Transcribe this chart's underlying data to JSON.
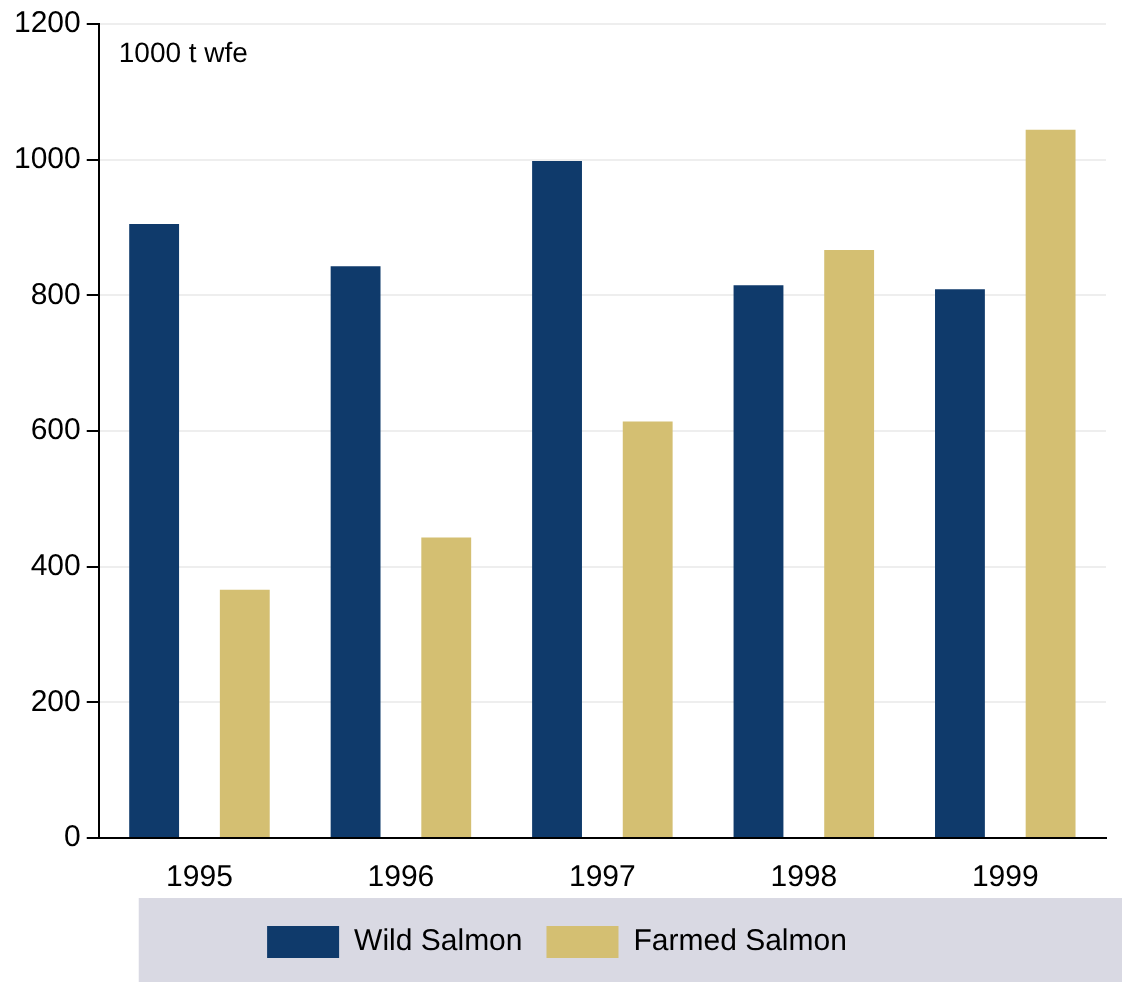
{
  "chart_data": {
    "type": "bar",
    "ylabel": "1000 t wfe",
    "categories": [
      "1995",
      "1996",
      "1997",
      "1998",
      "1999"
    ],
    "series": [
      {
        "name": "Wild Salmon",
        "color": "#0f3a6b",
        "values": [
          905,
          843,
          998,
          815,
          809
        ]
      },
      {
        "name": "Farmed Salmon",
        "color": "#d4bf72",
        "values": [
          366,
          443,
          614,
          867,
          1044
        ]
      }
    ],
    "ylim": [
      0,
      1200
    ],
    "yticks": [
      0,
      200,
      400,
      600,
      800,
      1000,
      1200
    ],
    "grid": "y",
    "legend": "bottom"
  }
}
